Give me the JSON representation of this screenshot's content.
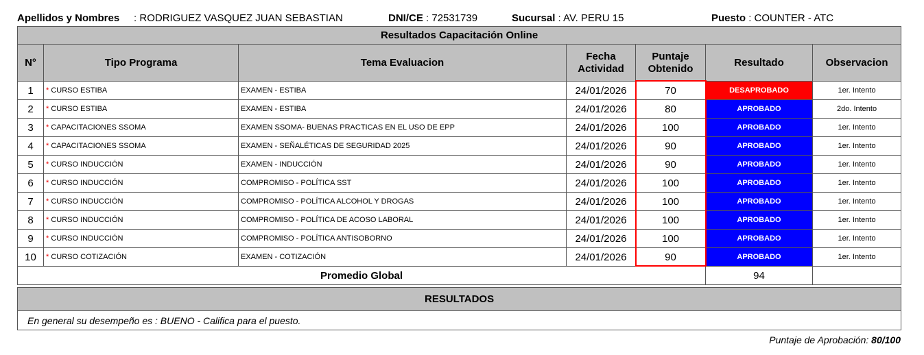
{
  "header": {
    "name_label": "Apellidos y Nombres",
    "name": ": RODRIGUEZ VASQUEZ JUAN SEBASTIAN",
    "dni_label": "DNI/CE",
    "dni": ": 72531739",
    "sucursal_label": "Sucursal",
    "sucursal": ": AV. PERU 15",
    "puesto_label": "Puesto",
    "puesto": ": COUNTER - ATC"
  },
  "table": {
    "title": "Resultados Capacitación Online",
    "columns": [
      "N°",
      "Tipo Programa",
      "Tema Evaluacion",
      "Fecha Actividad",
      "Puntaje Obtenido",
      "Resultado",
      "Observacion"
    ],
    "rows": [
      {
        "n": "1",
        "tipo": "CURSO ESTIBA",
        "tema": "EXAMEN - ESTIBA",
        "fecha": "24/01/2026",
        "puntaje": "70",
        "resultado": "DESAPROBADO",
        "obs": "1er. Intento"
      },
      {
        "n": "2",
        "tipo": "CURSO ESTIBA",
        "tema": "EXAMEN - ESTIBA",
        "fecha": "24/01/2026",
        "puntaje": "80",
        "resultado": "APROBADO",
        "obs": "2do. Intento"
      },
      {
        "n": "3",
        "tipo": "CAPACITACIONES SSOMA",
        "tema": "EXAMEN SSOMA- BUENAS PRACTICAS EN EL USO DE EPP",
        "fecha": "24/01/2026",
        "puntaje": "100",
        "resultado": "APROBADO",
        "obs": "1er. Intento"
      },
      {
        "n": "4",
        "tipo": "CAPACITACIONES SSOMA",
        "tema": "EXAMEN - SEÑALÉTICAS DE SEGURIDAD 2025",
        "fecha": "24/01/2026",
        "puntaje": "90",
        "resultado": "APROBADO",
        "obs": "1er. Intento"
      },
      {
        "n": "5",
        "tipo": "CURSO INDUCCIÓN",
        "tema": "EXAMEN - INDUCCIÓN",
        "fecha": "24/01/2026",
        "puntaje": "90",
        "resultado": "APROBADO",
        "obs": "1er. Intento"
      },
      {
        "n": "6",
        "tipo": "CURSO INDUCCIÓN",
        "tema": "COMPROMISO - POLÍTICA SST",
        "fecha": "24/01/2026",
        "puntaje": "100",
        "resultado": "APROBADO",
        "obs": "1er. Intento"
      },
      {
        "n": "7",
        "tipo": "CURSO INDUCCIÓN",
        "tema": "COMPROMISO - POLÍTICA ALCOHOL Y DROGAS",
        "fecha": "24/01/2026",
        "puntaje": "100",
        "resultado": "APROBADO",
        "obs": "1er. Intento"
      },
      {
        "n": "8",
        "tipo": "CURSO INDUCCIÓN",
        "tema": "COMPROMISO - POLÍTICA DE ACOSO LABORAL",
        "fecha": "24/01/2026",
        "puntaje": "100",
        "resultado": "APROBADO",
        "obs": "1er. Intento"
      },
      {
        "n": "9",
        "tipo": "CURSO INDUCCIÓN",
        "tema": "COMPROMISO - POLÍTICA ANTISOBORNO",
        "fecha": "24/01/2026",
        "puntaje": "100",
        "resultado": "APROBADO",
        "obs": "1er. Intento"
      },
      {
        "n": "10",
        "tipo": "CURSO COTIZACIÓN",
        "tema": "EXAMEN - COTIZACIÓN",
        "fecha": "24/01/2026",
        "puntaje": "90",
        "resultado": "APROBADO",
        "obs": "1er. Intento"
      }
    ],
    "promedio_label": "Promedio Global",
    "promedio": "94"
  },
  "results": {
    "title": "RESULTADOS",
    "text": "En general su desempeño es :   BUENO - Califica para el puesto."
  },
  "footer": {
    "label": "Puntaje de Aprobación: ",
    "value": "80/100"
  },
  "colors": {
    "aprobado": "#0000ff",
    "desaprobado": "#ff0000",
    "header_bg": "#c0c0c0"
  }
}
